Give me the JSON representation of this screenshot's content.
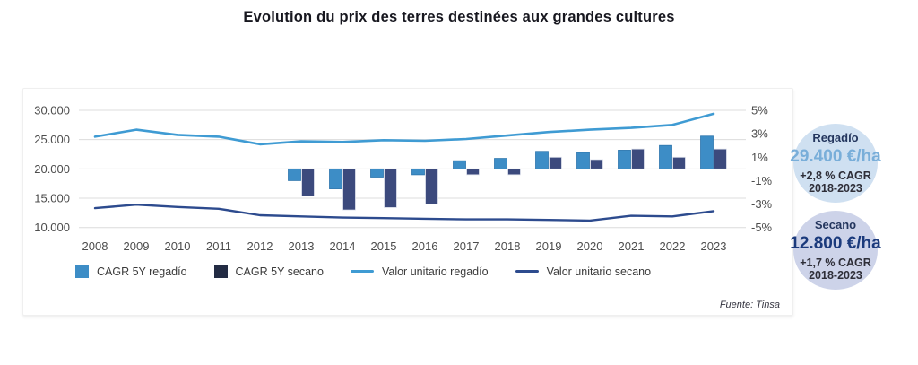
{
  "title": "Evolution du prix des terres destinées aux grandes cultures",
  "source": "Fuente: Tinsa",
  "chart_data": {
    "type": "combo",
    "title": "Evolution du prix des terres destinées aux grandes cultures",
    "categories": [
      "2008",
      "2009",
      "2010",
      "2011",
      "2012",
      "2013",
      "2014",
      "2015",
      "2016",
      "2017",
      "2018",
      "2019",
      "2020",
      "2021",
      "2022",
      "2023"
    ],
    "left_axis": {
      "ticks": [
        "30.000",
        "25.000",
        "20.000",
        "15.000",
        "10.000"
      ],
      "min": 10000,
      "max": 30000
    },
    "right_axis": {
      "ticks": [
        "5%",
        "3%",
        "1%",
        "-1%",
        "-3%",
        "-5%"
      ],
      "min": -5,
      "max": 5
    },
    "grid": true,
    "legend_position": "bottom",
    "series": [
      {
        "name": "CAGR 5Y regadío",
        "type": "bar",
        "axis": "right",
        "color": "#3d8dc6",
        "values": [
          null,
          null,
          null,
          null,
          null,
          -1.0,
          -1.7,
          -0.7,
          -0.5,
          0.7,
          0.9,
          1.5,
          1.4,
          1.6,
          2.0,
          2.8
        ]
      },
      {
        "name": "CAGR 5Y secano",
        "type": "bar",
        "axis": "right",
        "color": "#3c4a7d",
        "values": [
          null,
          null,
          null,
          null,
          null,
          -2.3,
          -3.5,
          -3.3,
          -3.0,
          -0.5,
          -0.5,
          1.0,
          0.8,
          1.7,
          1.0,
          1.7
        ]
      },
      {
        "name": "Valor unitario regadío",
        "type": "line",
        "axis": "left",
        "color": "#3f9bd3",
        "values": [
          25500,
          26700,
          25800,
          25500,
          24200,
          24700,
          24600,
          24900,
          24800,
          25100,
          25700,
          26300,
          26700,
          27000,
          27500,
          29400
        ]
      },
      {
        "name": "Valor unitario secano",
        "type": "line",
        "axis": "left",
        "color": "#2d4b8e",
        "values": [
          13300,
          13900,
          13500,
          13200,
          12100,
          11900,
          11700,
          11600,
          11500,
          11400,
          11400,
          11300,
          11200,
          12000,
          11900,
          12800
        ]
      }
    ],
    "legend_square_secano_color": "#232c44",
    "gridline_color": "#dcdcdc",
    "axis_text_color": "#4d4d4d"
  },
  "badges": [
    {
      "label": "Regadío",
      "value": "29.400 €/ha",
      "cagr": "+2,8 % CAGR",
      "period": "2018-2023",
      "bg": "#cfe0f1",
      "value_color": "#79aed9"
    },
    {
      "label": "Secano",
      "value": "12.800 €/ha",
      "cagr": "+1,7 % CAGR",
      "period": "2018-2023",
      "bg": "#cdd3e9",
      "value_color": "#1b3a7c"
    }
  ]
}
